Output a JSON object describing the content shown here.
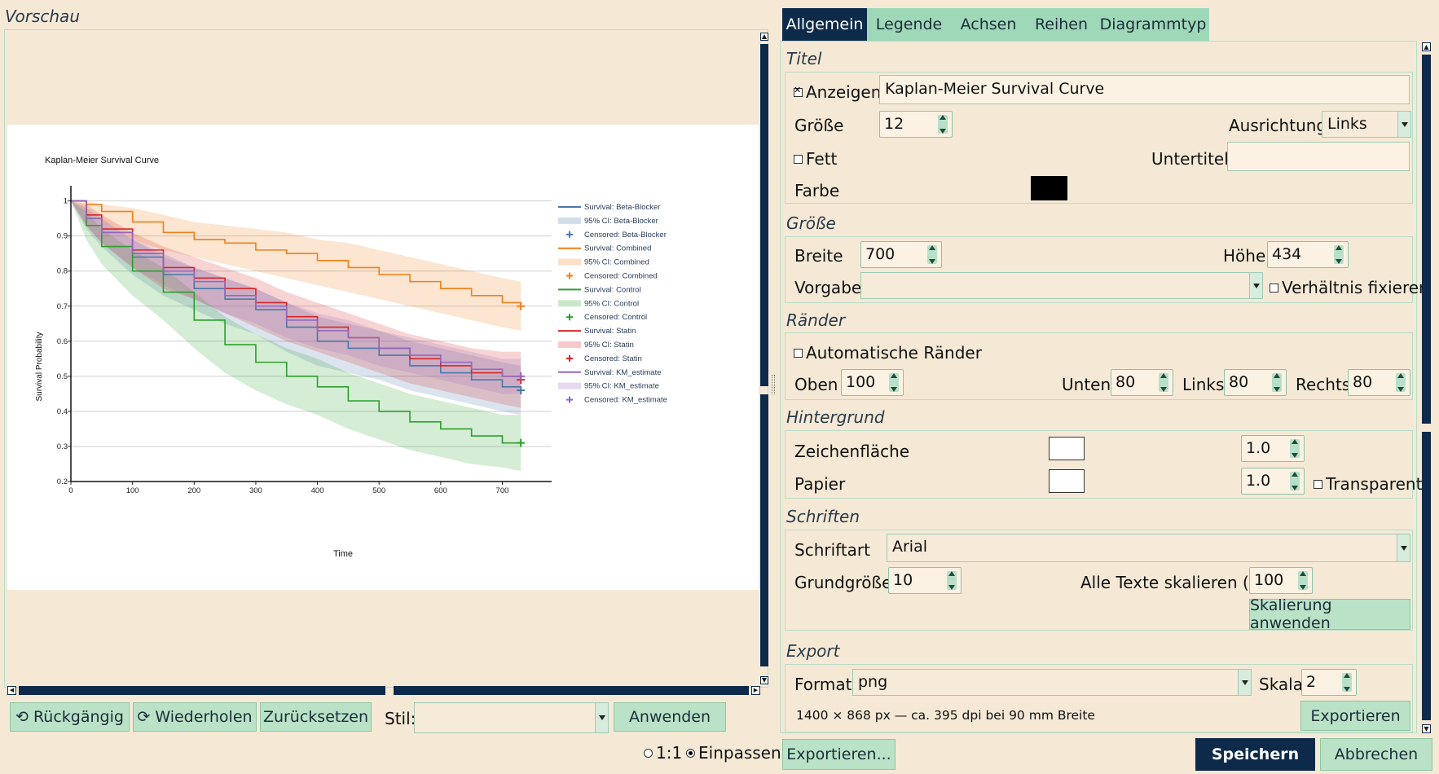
{
  "preview": {
    "title": "Vorschau",
    "buttons": {
      "undo": "Rückgängig",
      "redo": "Wiederholen",
      "reset": "Zurücksetzen",
      "apply": "Anwenden"
    },
    "style_label": "Stil:",
    "style_value": "",
    "zoom": {
      "one_to_one": "1:1",
      "fit": "Einpassen",
      "selected": "Einpassen"
    }
  },
  "tabs": [
    "Allgemein",
    "Legende",
    "Achsen",
    "Reihen",
    "Diagrammtyp"
  ],
  "active_tab": "Allgemein",
  "general": {
    "title_section": "Titel",
    "show_label": "Anzeigen",
    "show_checked": true,
    "title_value": "Kaplan-Meier Survival Curve",
    "size_label": "Größe",
    "size_value": "12",
    "align_label": "Ausrichtung",
    "align_value": "Links",
    "bold_label": "Fett",
    "bold_checked": false,
    "subtitle_label": "Untertitel",
    "subtitle_value": "",
    "color_label": "Farbe",
    "color_value": "#000000",
    "size_section": "Größe",
    "width_label": "Breite",
    "width_value": "700",
    "height_label": "Höhe",
    "height_value": "434",
    "preset_label": "Vorgabe",
    "preset_value": "",
    "ratio_label": "Verhältnis fixieren",
    "ratio_checked": false,
    "margins_section": "Ränder",
    "auto_margins_label": "Automatische Ränder",
    "auto_margins_checked": false,
    "top_label": "Oben",
    "top_value": "100",
    "bottom_label": "Unten",
    "bottom_value": "80",
    "left_label": "Links",
    "left_value": "80",
    "right_label": "Rechts",
    "right_value": "80",
    "background_section": "Hintergrund",
    "plot_area_label": "Zeichenfläche",
    "plot_area_color": "#ffffff",
    "plot_area_opacity": "1.0",
    "paper_label": "Papier",
    "paper_color": "#ffffff",
    "paper_opacity": "1.0",
    "transparent_label": "Transparent",
    "transparent_checked": false,
    "fonts_section": "Schriften",
    "font_label": "Schriftart",
    "font_value": "Arial",
    "base_size_label": "Grundgröße",
    "base_size_value": "10",
    "scale_all_label": "Alle Texte skalieren (%)",
    "scale_all_value": "100",
    "apply_scale_button": "Skalierung anwenden",
    "export_section": "Export",
    "format_label": "Format",
    "format_value": "png",
    "scale_label": "Skala",
    "scale_value": "2",
    "export_info": "1400 × 868 px — ca. 395 dpi bei 90 mm Breite",
    "export_button": "Exportieren"
  },
  "footer": {
    "export_dots": "Exportieren...",
    "save": "Speichern",
    "cancel": "Abbrechen"
  },
  "chart_data": {
    "type": "line",
    "title": "Kaplan-Meier Survival Curve",
    "xlabel": "Time",
    "ylabel": "Survival Probability",
    "xlim": [
      0,
      780
    ],
    "ylim": [
      0.2,
      1.02
    ],
    "xticks": [
      0,
      100,
      200,
      300,
      400,
      500,
      600,
      700
    ],
    "yticks": [
      0.2,
      0.3,
      0.4,
      0.5,
      0.6,
      0.7,
      0.8,
      0.9,
      1
    ],
    "grid": "horizontal",
    "legend_position": "right",
    "legend": [
      "Survival: Beta-Blocker",
      "95% CI: Beta-Blocker",
      "Censored: Beta-Blocker",
      "Survival: Combined",
      "95% CI: Combined",
      "Censored: Combined",
      "Survival: Control",
      "95% CI: Control",
      "Censored: Control",
      "Survival: Statin",
      "95% CI: Statin",
      "Censored: Statin",
      "Survival: KM_estimate",
      "95% CI: KM_estimate",
      "Censored: KM_estimate"
    ],
    "series": [
      {
        "name": "Beta-Blocker",
        "color": "#4a78a8",
        "x": [
          0,
          25,
          50,
          100,
          150,
          200,
          250,
          300,
          350,
          400,
          450,
          500,
          550,
          600,
          650,
          700,
          730
        ],
        "y": [
          1.0,
          0.95,
          0.91,
          0.84,
          0.79,
          0.75,
          0.72,
          0.69,
          0.64,
          0.6,
          0.58,
          0.56,
          0.53,
          0.51,
          0.49,
          0.47,
          0.46
        ],
        "ci_low": [
          1.0,
          0.92,
          0.87,
          0.79,
          0.73,
          0.69,
          0.65,
          0.62,
          0.57,
          0.53,
          0.51,
          0.49,
          0.46,
          0.44,
          0.42,
          0.4,
          0.39
        ],
        "ci_high": [
          1.0,
          0.98,
          0.95,
          0.89,
          0.85,
          0.81,
          0.78,
          0.75,
          0.71,
          0.67,
          0.65,
          0.63,
          0.6,
          0.58,
          0.56,
          0.54,
          0.53
        ],
        "censored": [
          [
            730,
            0.46
          ]
        ]
      },
      {
        "name": "Combined",
        "color": "#f07f1a",
        "x": [
          0,
          25,
          50,
          100,
          150,
          200,
          250,
          300,
          350,
          400,
          450,
          500,
          550,
          600,
          650,
          700,
          730
        ],
        "y": [
          1.0,
          0.99,
          0.97,
          0.94,
          0.91,
          0.89,
          0.88,
          0.86,
          0.85,
          0.83,
          0.81,
          0.79,
          0.77,
          0.75,
          0.73,
          0.71,
          0.7
        ],
        "ci_low": [
          1.0,
          0.97,
          0.94,
          0.89,
          0.86,
          0.84,
          0.82,
          0.8,
          0.78,
          0.76,
          0.74,
          0.72,
          0.7,
          0.68,
          0.66,
          0.64,
          0.63
        ],
        "ci_high": [
          1.0,
          1.0,
          0.99,
          0.98,
          0.96,
          0.94,
          0.93,
          0.92,
          0.91,
          0.89,
          0.88,
          0.86,
          0.84,
          0.82,
          0.8,
          0.78,
          0.77
        ],
        "censored": [
          [
            730,
            0.7
          ]
        ]
      },
      {
        "name": "Control",
        "color": "#2ca02c",
        "x": [
          0,
          25,
          50,
          100,
          150,
          200,
          250,
          300,
          350,
          400,
          450,
          500,
          550,
          600,
          650,
          700,
          730
        ],
        "y": [
          1.0,
          0.93,
          0.87,
          0.8,
          0.74,
          0.66,
          0.59,
          0.54,
          0.5,
          0.47,
          0.43,
          0.4,
          0.37,
          0.35,
          0.33,
          0.31,
          0.31
        ],
        "ci_low": [
          1.0,
          0.89,
          0.82,
          0.73,
          0.66,
          0.58,
          0.51,
          0.46,
          0.42,
          0.39,
          0.35,
          0.32,
          0.29,
          0.27,
          0.25,
          0.24,
          0.23
        ],
        "ci_high": [
          1.0,
          0.97,
          0.92,
          0.86,
          0.81,
          0.74,
          0.67,
          0.62,
          0.58,
          0.55,
          0.51,
          0.48,
          0.45,
          0.43,
          0.41,
          0.39,
          0.39
        ],
        "censored": [
          [
            730,
            0.31
          ]
        ]
      },
      {
        "name": "Statin",
        "color": "#d62728",
        "x": [
          0,
          25,
          50,
          100,
          150,
          200,
          250,
          300,
          350,
          400,
          450,
          500,
          550,
          600,
          650,
          700,
          730
        ],
        "y": [
          1.0,
          0.96,
          0.92,
          0.86,
          0.81,
          0.78,
          0.75,
          0.71,
          0.67,
          0.64,
          0.61,
          0.58,
          0.55,
          0.53,
          0.51,
          0.5,
          0.49
        ],
        "ci_low": [
          1.0,
          0.93,
          0.88,
          0.81,
          0.75,
          0.72,
          0.68,
          0.64,
          0.6,
          0.57,
          0.54,
          0.51,
          0.48,
          0.46,
          0.44,
          0.42,
          0.41
        ],
        "ci_high": [
          1.0,
          0.99,
          0.96,
          0.91,
          0.87,
          0.84,
          0.81,
          0.78,
          0.74,
          0.71,
          0.68,
          0.65,
          0.62,
          0.6,
          0.58,
          0.57,
          0.57
        ],
        "censored": [
          [
            730,
            0.49
          ]
        ]
      },
      {
        "name": "KM_estimate",
        "color": "#9467bd",
        "x": [
          0,
          25,
          50,
          100,
          150,
          200,
          250,
          300,
          350,
          400,
          450,
          500,
          550,
          600,
          650,
          700,
          730
        ],
        "y": [
          1.0,
          0.95,
          0.91,
          0.85,
          0.8,
          0.77,
          0.73,
          0.7,
          0.66,
          0.63,
          0.61,
          0.58,
          0.56,
          0.54,
          0.52,
          0.5,
          0.5
        ],
        "ci_low": [
          1.0,
          0.93,
          0.88,
          0.81,
          0.76,
          0.72,
          0.68,
          0.65,
          0.61,
          0.58,
          0.56,
          0.53,
          0.51,
          0.49,
          0.47,
          0.45,
          0.45
        ],
        "ci_high": [
          1.0,
          0.97,
          0.94,
          0.89,
          0.84,
          0.81,
          0.78,
          0.75,
          0.71,
          0.68,
          0.66,
          0.63,
          0.61,
          0.59,
          0.57,
          0.55,
          0.55
        ],
        "censored": [
          [
            730,
            0.5
          ]
        ]
      }
    ]
  }
}
